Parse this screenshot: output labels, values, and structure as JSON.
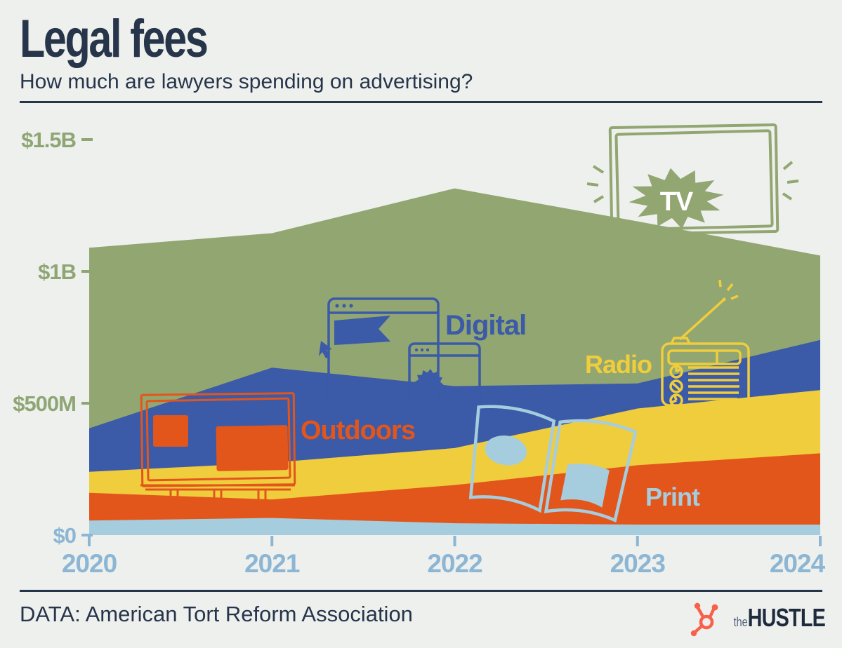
{
  "header": {
    "title": "Legal fees",
    "subtitle": "How much are lawyers spending on advertising?"
  },
  "footer": {
    "source": "DATA: American Tort Reform Association",
    "brand_the": "the",
    "brand_name": "HUSTLE"
  },
  "colors": {
    "background": "#eef0ee",
    "heading": "#27354a",
    "axis_money": "#8fa674",
    "axis_year": "#8cb6d3",
    "tv_label_text": "#ffffff",
    "hubspot_orange": "#f8604a",
    "brand_navy": "#1f2b3d"
  },
  "chart_data": {
    "type": "area",
    "stacked": true,
    "title": "Legal fees",
    "subtitle": "How much are lawyers spending on advertising?",
    "unit": "USD millions (estimated from plot)",
    "x": [
      2020,
      2021,
      2022,
      2023,
      2024
    ],
    "xticks": [
      "2020",
      "2021",
      "2022",
      "2023",
      "2024"
    ],
    "series": [
      {
        "name": "Print",
        "color": "#a6cdde",
        "values": [
          55,
          65,
          45,
          40,
          40
        ]
      },
      {
        "name": "Outdoors",
        "color": "#e2561c",
        "values": [
          105,
          70,
          145,
          225,
          270
        ]
      },
      {
        "name": "Radio",
        "color": "#f0cd3c",
        "values": [
          80,
          140,
          140,
          215,
          240
        ]
      },
      {
        "name": "Digital",
        "color": "#3b5aa8",
        "values": [
          165,
          360,
          235,
          95,
          190
        ]
      },
      {
        "name": "TV",
        "color": "#92a671",
        "values": [
          685,
          510,
          750,
          615,
          320
        ]
      }
    ],
    "totals": [
      1090,
      1145,
      1315,
      1190,
      1060
    ],
    "y_ticks": [
      {
        "label": "$1.5B",
        "value": 1500
      },
      {
        "label": "$1B",
        "value": 1000
      },
      {
        "label": "$500M",
        "value": 500
      },
      {
        "label": "$0",
        "value": 0
      }
    ],
    "ylim": [
      0,
      1500
    ],
    "grid": false,
    "legend": "inline-labels"
  }
}
